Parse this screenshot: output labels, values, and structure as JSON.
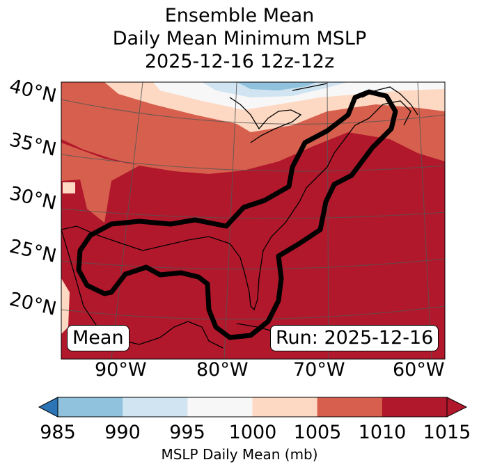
{
  "title": {
    "line1": "Ensemble Mean",
    "line2": "Daily Mean Minimum MSLP",
    "line3": "2025-12-16 12z-12z"
  },
  "map": {
    "lat_labels": [
      "40°N",
      "35°N",
      "30°N",
      "25°N",
      "20°N"
    ],
    "lon_labels": [
      "90°W",
      "80°W",
      "70°W",
      "60°W"
    ],
    "mean_label": "Mean",
    "run_label": "Run: 2025-12-16",
    "colors": {
      "c985": "#2b75b6",
      "c990": "#3c8bc3",
      "c995": "#90c2de",
      "c1000": "#d0e4f1",
      "c1005": "#f7f7f7",
      "c1010": "#fdd8c2",
      "c1015a": "#d6604d",
      "c1015": "#b2182b"
    }
  },
  "colorbar": {
    "ticks": [
      "985",
      "990",
      "995",
      "1000",
      "1005",
      "1010",
      "1015"
    ],
    "title": "MSLP Daily Mean (mb)",
    "segment_colors": [
      "#2b75b6",
      "#90c2de",
      "#d0e4f1",
      "#f7f7f7",
      "#fdd8c2",
      "#d6604d",
      "#b2182b"
    ]
  }
}
